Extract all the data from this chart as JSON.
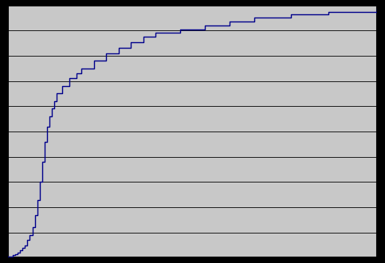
{
  "title": "",
  "xlabel": "",
  "ylabel": "",
  "xlim": [
    0,
    150
  ],
  "ylim": [
    0,
    1.0
  ],
  "yticks": [
    0.0,
    0.1,
    0.2,
    0.3,
    0.4,
    0.5,
    0.6,
    0.7,
    0.8,
    0.9,
    1.0
  ],
  "line_color": "#00008B",
  "background_color": "#C8C8C8",
  "fig_facecolor": "#000000",
  "x_values": [
    0,
    2,
    3,
    4,
    5,
    6,
    7,
    8,
    9,
    10,
    11,
    12,
    13,
    14,
    15,
    16,
    17,
    18,
    19,
    20,
    22,
    25,
    28,
    30,
    35,
    40,
    45,
    50,
    55,
    60,
    70,
    80,
    90,
    100,
    115,
    130,
    150
  ],
  "y_values": [
    0.005,
    0.01,
    0.015,
    0.02,
    0.03,
    0.04,
    0.05,
    0.07,
    0.09,
    0.12,
    0.17,
    0.23,
    0.3,
    0.38,
    0.46,
    0.52,
    0.56,
    0.59,
    0.62,
    0.65,
    0.68,
    0.71,
    0.73,
    0.75,
    0.78,
    0.81,
    0.83,
    0.855,
    0.875,
    0.89,
    0.905,
    0.92,
    0.935,
    0.95,
    0.965,
    0.975,
    0.985
  ]
}
